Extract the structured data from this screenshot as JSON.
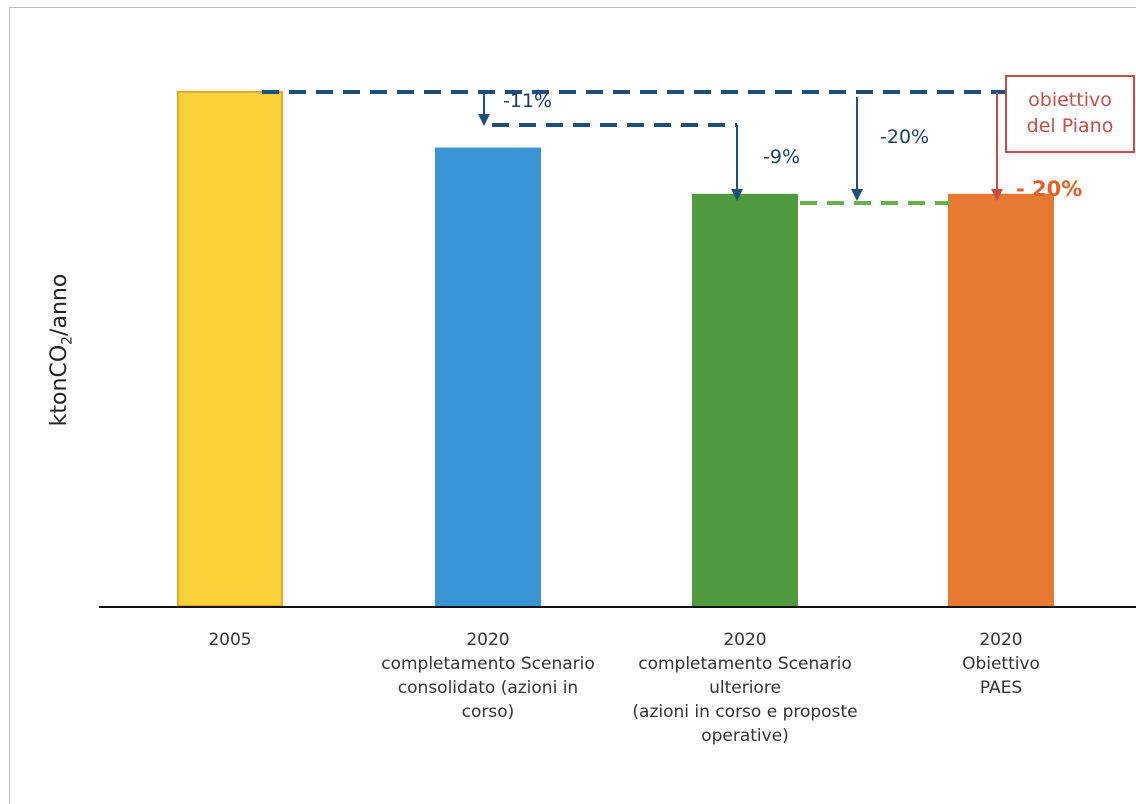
{
  "chart_data": {
    "type": "bar",
    "ylabel_main": "ktonCO",
    "ylabel_sub": "2",
    "ylabel_tail": "/anno",
    "categories": [
      [
        "2005"
      ],
      [
        "2020",
        "completamento Scenario",
        "consolidato (azioni in",
        "corso)"
      ],
      [
        "2020",
        "completamento Scenario",
        "ulteriore",
        "(azioni in corso e proposte",
        "operative)"
      ],
      [
        "2020",
        "Obiettivo",
        "PAES"
      ]
    ],
    "values": [
      100,
      89,
      80,
      80
    ],
    "colors": [
      "#f9d23b",
      "#3a95d4",
      "#4f9a3f",
      "#e67a33"
    ],
    "border_colors": [
      "#e7a824",
      "#3a95d4",
      "#4f9a3f",
      "#e67a33"
    ],
    "ylim": [
      0,
      100
    ],
    "annotations": {
      "step1": "-11%",
      "step2": "-9%",
      "total": "-20%",
      "target_box": [
        "obiettivo",
        "del Piano"
      ],
      "target_pct": "- 20%"
    }
  }
}
